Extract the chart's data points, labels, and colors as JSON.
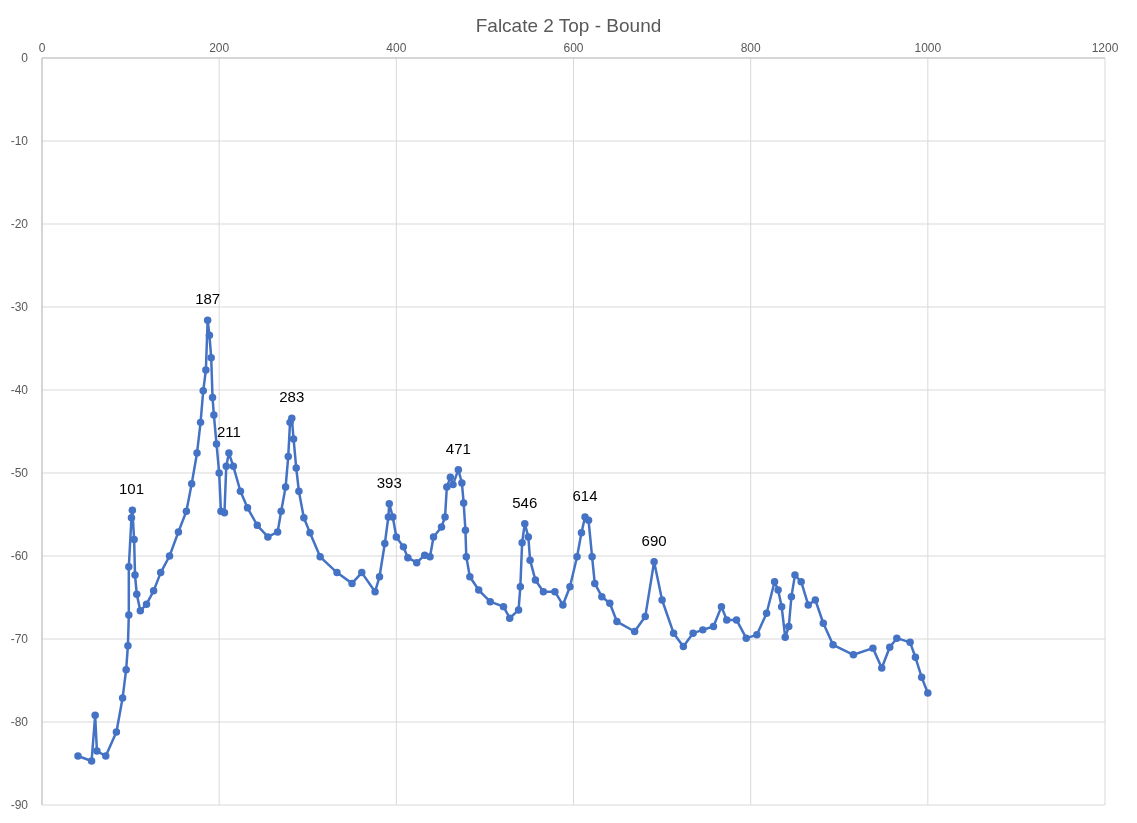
{
  "chart_data": {
    "type": "line",
    "title": "Falcate 2 Top - Bound",
    "x": [
      40.6,
      56,
      60,
      62,
      72,
      84,
      91,
      95,
      97,
      98,
      98,
      101,
      102,
      104,
      105,
      107,
      111,
      118,
      126,
      134,
      144,
      154,
      163,
      169,
      175,
      179,
      182,
      185,
      187,
      189,
      191,
      192.5,
      194,
      197,
      200,
      202,
      206,
      208,
      211,
      216,
      224,
      232,
      243,
      255,
      266,
      270,
      275,
      278,
      280,
      282,
      284,
      287,
      290,
      295.6,
      302.5,
      314,
      333,
      350,
      361,
      376,
      381,
      387,
      391,
      392,
      396,
      400,
      408,
      413,
      423,
      432,
      438,
      442,
      451,
      455,
      457,
      461,
      464,
      470,
      474,
      476,
      478,
      479,
      483,
      493,
      506,
      521,
      528,
      538,
      540,
      542,
      545,
      549,
      551,
      557,
      566,
      579,
      588,
      596,
      604,
      609,
      613,
      617,
      621,
      624,
      632,
      641,
      649,
      669,
      681,
      691,
      700,
      713,
      724,
      735,
      746,
      758,
      767,
      773,
      784,
      795,
      807,
      818,
      827,
      831,
      835,
      839,
      843,
      846,
      850,
      857,
      865,
      873,
      882,
      893,
      916,
      938,
      948,
      957,
      965,
      980,
      986,
      993,
      1000
    ],
    "series": [
      {
        "color": "#4472c4",
        "values": [
          -84.1,
          -84.7,
          -79.2,
          -83.5,
          -84.1,
          -81.2,
          -77.1,
          -73.7,
          -70.8,
          -67.1,
          -61.3,
          -55.4,
          -54.5,
          -58,
          -62.3,
          -64.6,
          -66.6,
          -65.8,
          -64.2,
          -62,
          -60,
          -57.1,
          -54.6,
          -51.3,
          -47.6,
          -43.9,
          -40.1,
          -37.6,
          -31.6,
          -33.4,
          -36.1,
          -40.9,
          -43,
          -46.5,
          -50,
          -54.6,
          -54.8,
          -49.2,
          -47.6,
          -49.2,
          -52.2,
          -54.2,
          -56.3,
          -57.7,
          -57.1,
          -54.6,
          -51.7,
          -48,
          -43.9,
          -43.4,
          -45.9,
          -49.4,
          -52.2,
          -55.4,
          -57.2,
          -60.1,
          -62,
          -63.3,
          -62,
          -64.3,
          -62.5,
          -58.5,
          -55.3,
          -53.7,
          -55.3,
          -57.7,
          -58.9,
          -60.2,
          -60.8,
          -59.9,
          -60.1,
          -57.7,
          -56.5,
          -55.3,
          -51.7,
          -50.5,
          -51.4,
          -49.6,
          -51.2,
          -53.6,
          -56.9,
          -60.1,
          -62.5,
          -64.1,
          -65.5,
          -66.1,
          -67.5,
          -66.5,
          -63.7,
          -58.4,
          -56.1,
          -57.7,
          -60.5,
          -62.9,
          -64.3,
          -64.3,
          -65.9,
          -63.7,
          -60.1,
          -57.2,
          -55.3,
          -55.7,
          -60.1,
          -63.3,
          -64.9,
          -65.7,
          -67.9,
          -69.1,
          -67.3,
          -60.7,
          -65.3,
          -69.3,
          -70.9,
          -69.3,
          -68.9,
          -68.5,
          -66.1,
          -67.7,
          -67.7,
          -69.9,
          -69.5,
          -66.9,
          -63.1,
          -64.1,
          -66.1,
          -69.8,
          -68.5,
          -64.9,
          -62.3,
          -63.1,
          -65.9,
          -65.3,
          -68.1,
          -70.7,
          -71.9,
          -71.1,
          -73.5,
          -71,
          -69.9,
          -70.4,
          -72.2,
          -74.6,
          -76.5
        ]
      }
    ],
    "annotations": [
      {
        "text": "101",
        "x": 101,
        "y": -54.5
      },
      {
        "text": "187",
        "x": 187,
        "y": -31.6
      },
      {
        "text": "211",
        "x": 211,
        "y": -47.6
      },
      {
        "text": "283",
        "x": 282,
        "y": -43.4
      },
      {
        "text": "393",
        "x": 392,
        "y": -53.7
      },
      {
        "text": "471",
        "x": 470,
        "y": -49.6
      },
      {
        "text": "546",
        "x": 545,
        "y": -56.1
      },
      {
        "text": "614",
        "x": 613,
        "y": -55.3
      },
      {
        "text": "690",
        "x": 691,
        "y": -60.7
      }
    ],
    "xlim": [
      0,
      1200
    ],
    "xticks": [
      0,
      200,
      400,
      600,
      800,
      1000,
      1200
    ],
    "ylim": [
      -90,
      0
    ],
    "yticks": [
      -90,
      -80,
      -70,
      -60,
      -50,
      -40,
      -30,
      -20,
      -10,
      0
    ],
    "grid": true,
    "marker": "circle",
    "line_style": "solid"
  }
}
